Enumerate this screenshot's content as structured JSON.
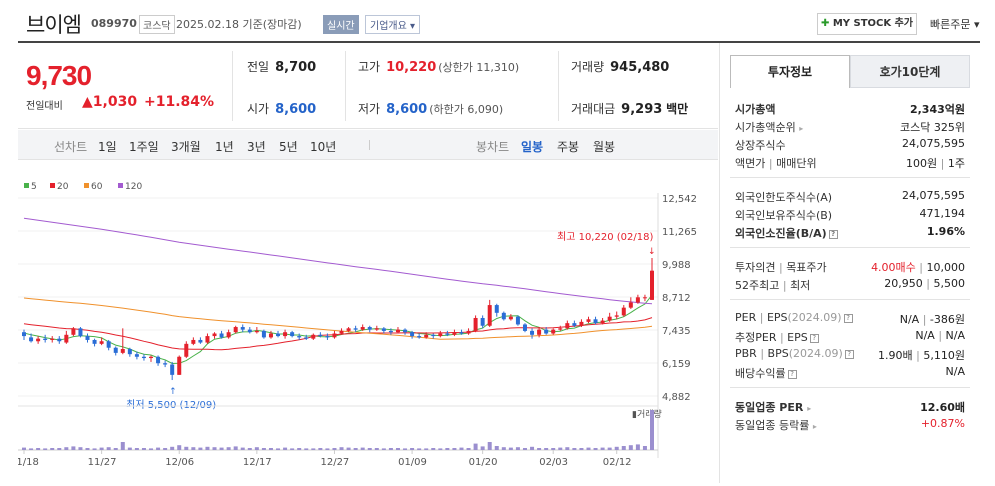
{
  "header": {
    "name": "브이엠",
    "code": "089970",
    "market": "코스닥",
    "date": "2025.02.18 기준(장마감)",
    "realtime": "실시간",
    "company_info": "기업개요 ▾",
    "mystock": "MY STOCK 추가",
    "quick_order": "빠른주문 ▾"
  },
  "quote": {
    "price": "9,730",
    "change_label": "전일대비",
    "change": "1,030",
    "change_pct": "+11.84%",
    "prev_label": "전일",
    "prev": "8,700",
    "high_label": "고가",
    "high": "10,220",
    "high_limit": "(상한가 11,310)",
    "volume_label": "거래량",
    "volume": "945,480",
    "open_label": "시가",
    "open": "8,600",
    "low_label": "저가",
    "low": "8,600",
    "low_limit": "(하한가 6,090)",
    "amount_label": "거래대금",
    "amount": "9,293",
    "amount_unit": "백만"
  },
  "period": {
    "line_label": "선차트",
    "line_items": [
      "1일",
      "1주일",
      "3개월",
      "1년",
      "3년",
      "5년",
      "10년"
    ],
    "candle_label": "봉차트",
    "candle_items": [
      "일봉",
      "주봉",
      "월봉"
    ],
    "selected": "일봉"
  },
  "chart_data": {
    "type": "candlestick",
    "legend": [
      "5",
      "20",
      "60",
      "120"
    ],
    "legend_colors": [
      "#49b24a",
      "#e4212c",
      "#f0912c",
      "#a35bd0"
    ],
    "y_ticks": [
      "12,542",
      "11,265",
      "9,988",
      "8,712",
      "7,435",
      "6,159",
      "4,882"
    ],
    "ylim": [
      4882,
      12542
    ],
    "x_ticks": [
      "11/18",
      "11/27",
      "12/06",
      "12/17",
      "12/27",
      "01/09",
      "01/20",
      "02/03",
      "02/12"
    ],
    "x_tick_index": [
      0,
      11,
      22,
      33,
      44,
      55,
      65,
      75,
      84
    ],
    "max_annotation": "최고 10,220 (02/18)",
    "min_annotation": "최저 5,500 (12/09)",
    "volume_label": "거래량",
    "candles": [
      [
        7350,
        7200,
        7450,
        7050
      ],
      [
        7150,
        7000,
        7300,
        6950
      ],
      [
        7000,
        7100,
        7200,
        6900
      ],
      [
        7100,
        7050,
        7250,
        6950
      ],
      [
        7050,
        7100,
        7200,
        6950
      ],
      [
        7100,
        7000,
        7200,
        6900
      ],
      [
        6950,
        7250,
        7400,
        6900
      ],
      [
        7250,
        7500,
        7550,
        7200
      ],
      [
        7500,
        7200,
        7550,
        7150
      ],
      [
        7200,
        7050,
        7300,
        6950
      ],
      [
        7050,
        6900,
        7100,
        6800
      ],
      [
        6900,
        7000,
        7150,
        6850
      ],
      [
        7000,
        6750,
        7050,
        6650
      ],
      [
        6750,
        6550,
        6800,
        6450
      ],
      [
        6550,
        6700,
        7500,
        6500
      ],
      [
        6700,
        6500,
        6750,
        6400
      ],
      [
        6500,
        6400,
        6600,
        6300
      ],
      [
        6400,
        6350,
        6500,
        6250
      ],
      [
        6350,
        6400,
        6450,
        6200
      ],
      [
        6400,
        6150,
        6450,
        6050
      ],
      [
        6150,
        6100,
        6250,
        6000
      ],
      [
        6100,
        5700,
        6200,
        5500
      ],
      [
        5700,
        6400,
        6450,
        5700
      ],
      [
        6400,
        6900,
        7000,
        6350
      ],
      [
        6900,
        7050,
        7150,
        6850
      ],
      [
        7050,
        6950,
        7150,
        6900
      ],
      [
        6950,
        7200,
        7300,
        6900
      ],
      [
        7200,
        7300,
        7350,
        7100
      ],
      [
        7300,
        7150,
        7400,
        7100
      ],
      [
        7150,
        7350,
        7450,
        7100
      ],
      [
        7350,
        7550,
        7600,
        7300
      ],
      [
        7550,
        7450,
        7650,
        7350
      ],
      [
        7450,
        7350,
        7550,
        7300
      ],
      [
        7350,
        7400,
        7550,
        7300
      ],
      [
        7400,
        7150,
        7450,
        7100
      ],
      [
        7150,
        7300,
        7400,
        7100
      ],
      [
        7300,
        7200,
        7400,
        7150
      ],
      [
        7200,
        7350,
        7450,
        7100
      ],
      [
        7350,
        7200,
        7400,
        7150
      ],
      [
        7200,
        7150,
        7300,
        7050
      ],
      [
        7150,
        7100,
        7250,
        7050
      ],
      [
        7100,
        7250,
        7300,
        7050
      ],
      [
        7250,
        7200,
        7350,
        7150
      ],
      [
        7200,
        7150,
        7300,
        7050
      ],
      [
        7150,
        7300,
        7400,
        7100
      ],
      [
        7300,
        7400,
        7500,
        7250
      ],
      [
        7400,
        7500,
        7550,
        7350
      ],
      [
        7500,
        7450,
        7600,
        7350
      ],
      [
        7450,
        7550,
        7650,
        7400
      ],
      [
        7550,
        7450,
        7600,
        7350
      ],
      [
        7450,
        7500,
        7600,
        7400
      ],
      [
        7500,
        7400,
        7550,
        7300
      ],
      [
        7400,
        7350,
        7500,
        7250
      ],
      [
        7350,
        7450,
        7550,
        7300
      ],
      [
        7450,
        7350,
        7500,
        7250
      ],
      [
        7350,
        7200,
        7400,
        7100
      ],
      [
        7200,
        7150,
        7300,
        7100
      ],
      [
        7150,
        7250,
        7350,
        7100
      ],
      [
        7250,
        7200,
        7300,
        7100
      ],
      [
        7200,
        7300,
        7400,
        7150
      ],
      [
        7300,
        7250,
        7400,
        7200
      ],
      [
        7250,
        7350,
        7450,
        7200
      ],
      [
        7350,
        7300,
        7450,
        7250
      ],
      [
        7300,
        7400,
        7500,
        7250
      ],
      [
        7400,
        7900,
        8000,
        7350
      ],
      [
        7900,
        7600,
        8000,
        7500
      ],
      [
        7600,
        8400,
        8600,
        7550
      ],
      [
        8400,
        8100,
        8450,
        7950
      ],
      [
        8100,
        7850,
        8150,
        7800
      ],
      [
        7850,
        7950,
        8050,
        7800
      ],
      [
        7950,
        7650,
        8000,
        7600
      ],
      [
        7650,
        7400,
        7700,
        7350
      ],
      [
        7400,
        7250,
        7500,
        7100
      ],
      [
        7250,
        7450,
        7550,
        7150
      ],
      [
        7450,
        7300,
        7550,
        7250
      ],
      [
        7300,
        7450,
        7500,
        7250
      ],
      [
        7450,
        7500,
        7600,
        7400
      ],
      [
        7500,
        7700,
        7800,
        7450
      ],
      [
        7700,
        7600,
        7800,
        7550
      ],
      [
        7600,
        7750,
        7850,
        7550
      ],
      [
        7750,
        7850,
        7950,
        7700
      ],
      [
        7850,
        7700,
        7950,
        7650
      ],
      [
        7700,
        7800,
        7900,
        7650
      ],
      [
        7800,
        7950,
        8100,
        7750
      ],
      [
        7950,
        8000,
        8150,
        7850
      ],
      [
        8000,
        8300,
        8400,
        7950
      ],
      [
        8300,
        8500,
        8700,
        8250
      ],
      [
        8500,
        8700,
        8800,
        8450
      ],
      [
        8700,
        8700,
        8800,
        8550
      ],
      [
        8600,
        9730,
        10220,
        8600
      ]
    ],
    "volumes": [
      0.06,
      0.04,
      0.05,
      0.04,
      0.05,
      0.05,
      0.07,
      0.09,
      0.07,
      0.05,
      0.04,
      0.06,
      0.07,
      0.05,
      0.2,
      0.06,
      0.05,
      0.05,
      0.04,
      0.06,
      0.05,
      0.08,
      0.12,
      0.08,
      0.07,
      0.06,
      0.08,
      0.07,
      0.06,
      0.07,
      0.09,
      0.06,
      0.05,
      0.07,
      0.05,
      0.05,
      0.04,
      0.06,
      0.04,
      0.05,
      0.04,
      0.04,
      0.05,
      0.04,
      0.05,
      0.07,
      0.06,
      0.05,
      0.06,
      0.05,
      0.05,
      0.04,
      0.05,
      0.05,
      0.04,
      0.05,
      0.04,
      0.04,
      0.05,
      0.04,
      0.05,
      0.05,
      0.06,
      0.05,
      0.16,
      0.09,
      0.2,
      0.1,
      0.07,
      0.06,
      0.07,
      0.05,
      0.08,
      0.05,
      0.05,
      0.05,
      0.06,
      0.07,
      0.05,
      0.05,
      0.06,
      0.05,
      0.06,
      0.06,
      0.08,
      0.1,
      0.12,
      0.14,
      0.1,
      1.0
    ]
  },
  "panel": {
    "tab_invest": "투자정보",
    "tab_hoga": "호가10단계",
    "market_cap_label": "시가총액",
    "market_cap": "2,343억원",
    "cap_rank_label": "시가총액순위",
    "cap_rank": "코스닥 325위",
    "shares_label": "상장주식수",
    "shares": "24,075,595",
    "par_label": "액면가",
    "unit_label": "매매단위",
    "par": "100원",
    "unit": "1주",
    "foreign_limit_label": "외국인한도주식수(A)",
    "foreign_limit": "24,075,595",
    "foreign_hold_label": "외국인보유주식수(B)",
    "foreign_hold": "471,194",
    "foreign_ratio_label": "외국인소진율(B/A)",
    "foreign_ratio": "1.96%",
    "opinion_label": "투자의견",
    "target_label": "목표주가",
    "opinion": "4.00매수",
    "target": "10,000",
    "wk52_label": "52주최고",
    "wk52_low_label": "최저",
    "wk52_high": "20,950",
    "wk52_low": "5,500",
    "per_label": "PER",
    "eps_label": "EPS",
    "per_period": "(2024.09)",
    "per": "N/A",
    "eps": "-386원",
    "est_per_label": "추정PER",
    "est_eps_label": "EPS",
    "est_per": "N/A",
    "est_eps": "N/A",
    "pbr_label": "PBR",
    "bps_label": "BPS",
    "bps_period": "(2024.09)",
    "pbr": "1.90배",
    "bps": "5,110원",
    "div_label": "배당수익률",
    "div": "N/A",
    "ind_per_label": "동일업종 PER",
    "ind_per": "12.60배",
    "ind_chg_label": "동일업종 등락률",
    "ind_chg": "+0.87%"
  }
}
